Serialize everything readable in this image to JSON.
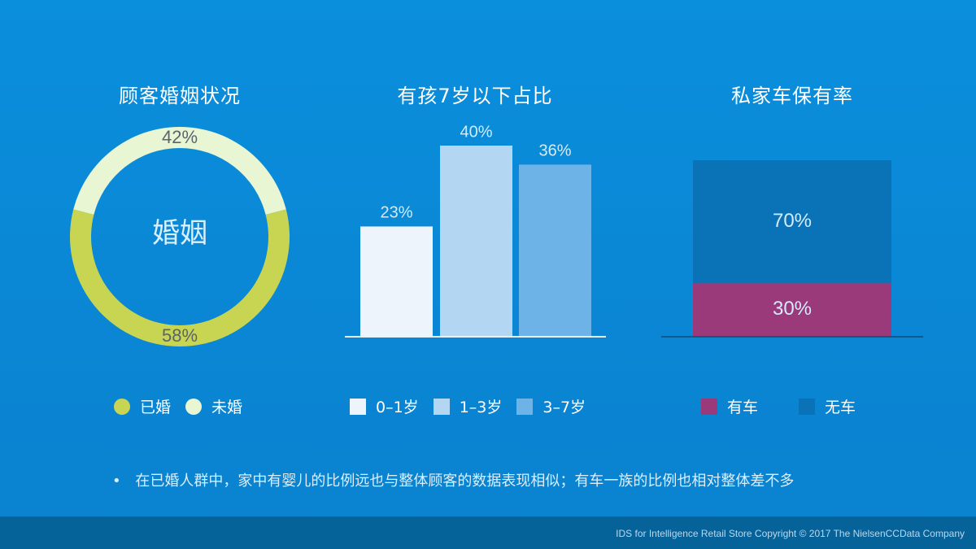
{
  "colors": {
    "married": "#c8d552",
    "unmarried": "#e8f6d4",
    "age_0_1": "#eef4fb",
    "age_1_3": "#b3d6f2",
    "age_3_7": "#6db3e8",
    "has_car": "#9b3a7a",
    "no_car": "#0a73b7"
  },
  "chart_data": [
    {
      "type": "pie",
      "title": "顾客婚姻状况",
      "center_label": "婚姻",
      "categories": [
        "已婚",
        "未婚"
      ],
      "values": [
        58,
        42
      ],
      "labels": [
        "58%",
        "42%"
      ],
      "legend": "bottom"
    },
    {
      "type": "bar",
      "title": "有孩7岁以下占比",
      "categories": [
        "0–1岁",
        "1–3岁",
        "3–7岁"
      ],
      "values": [
        23,
        40,
        36
      ],
      "labels": [
        "23%",
        "40%",
        "36%"
      ],
      "ylim": [
        0,
        45
      ],
      "grid": false,
      "legend": "bottom"
    },
    {
      "type": "bar",
      "stacked": true,
      "title": "私家车保有率",
      "categories": [
        "有车",
        "无车"
      ],
      "values": [
        30,
        70
      ],
      "labels": [
        "30%",
        "70%"
      ],
      "legend": "bottom"
    }
  ],
  "note": {
    "bullet": "•",
    "text": "在已婚人群中，家中有婴儿的比例远也与整体顾客的数据表现相似；有车一族的比例也相对整体差不多"
  },
  "footer": {
    "text": "IDS for Intelligence Retail Store  Copyright © 2017 The NielsenCCData Company"
  }
}
